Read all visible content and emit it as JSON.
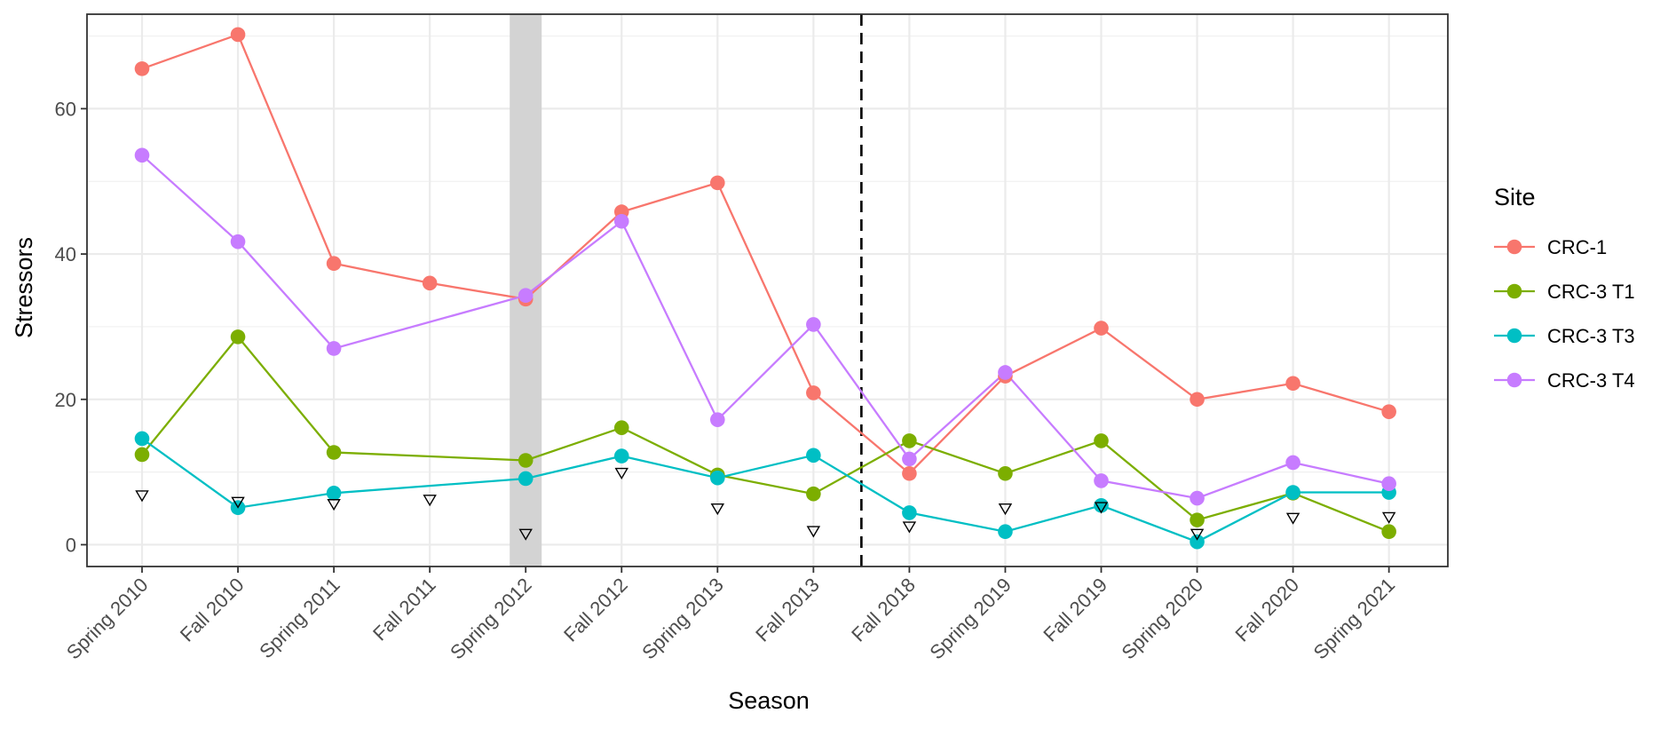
{
  "chart_data": {
    "type": "line",
    "xlabel": "Season",
    "ylabel": "Stressors",
    "categories": [
      "Spring 2010",
      "Fall 2010",
      "Spring 2011",
      "Fall 2011",
      "Spring 2012",
      "Fall 2012",
      "Spring 2013",
      "Fall 2013",
      "Fall 2018",
      "Spring 2019",
      "Fall 2019",
      "Spring 2020",
      "Fall 2020",
      "Spring 2021"
    ],
    "ylim": [
      -3,
      73
    ],
    "yticks": [
      0,
      20,
      40,
      60
    ],
    "grid": true,
    "legend": {
      "title": "Site",
      "placement": "right",
      "entries": [
        "CRC-1",
        "CRC-3 T1",
        "CRC-3 T3",
        "CRC-3 T4"
      ]
    },
    "series": [
      {
        "name": "CRC-1",
        "color": "#F8766D",
        "values": [
          65.5,
          70.2,
          38.7,
          36.0,
          33.8,
          45.8,
          49.8,
          20.9,
          9.8,
          23.2,
          29.8,
          20.0,
          22.2,
          18.3
        ]
      },
      {
        "name": "CRC-3 T1",
        "color": "#7CAE00",
        "values": [
          12.4,
          28.6,
          12.7,
          null,
          11.6,
          16.1,
          9.6,
          7.0,
          14.3,
          9.8,
          14.3,
          3.4,
          7.1,
          1.8
        ]
      },
      {
        "name": "CRC-3 T3",
        "color": "#00BFC4",
        "values": [
          14.6,
          5.1,
          7.1,
          null,
          9.1,
          12.2,
          9.2,
          12.3,
          4.4,
          1.8,
          5.4,
          0.4,
          7.2,
          7.2
        ]
      },
      {
        "name": "CRC-3 T4",
        "color": "#C77CFF",
        "values": [
          53.6,
          41.7,
          27.0,
          null,
          34.3,
          44.5,
          17.2,
          30.3,
          11.8,
          23.7,
          8.8,
          6.4,
          11.3,
          8.4
        ]
      }
    ],
    "reference_markers": {
      "shape": "open-triangle-down",
      "values": [
        6.8,
        5.9,
        5.6,
        6.2,
        1.5,
        9.9,
        5.0,
        1.9,
        2.5,
        5.0,
        5.2,
        1.5,
        3.7,
        3.8
      ]
    },
    "shaded_category": "Spring 2012",
    "shade_color": "#d3d3d3",
    "vertical_dashed_line_between": [
      "Fall 2013",
      "Fall 2018"
    ]
  }
}
